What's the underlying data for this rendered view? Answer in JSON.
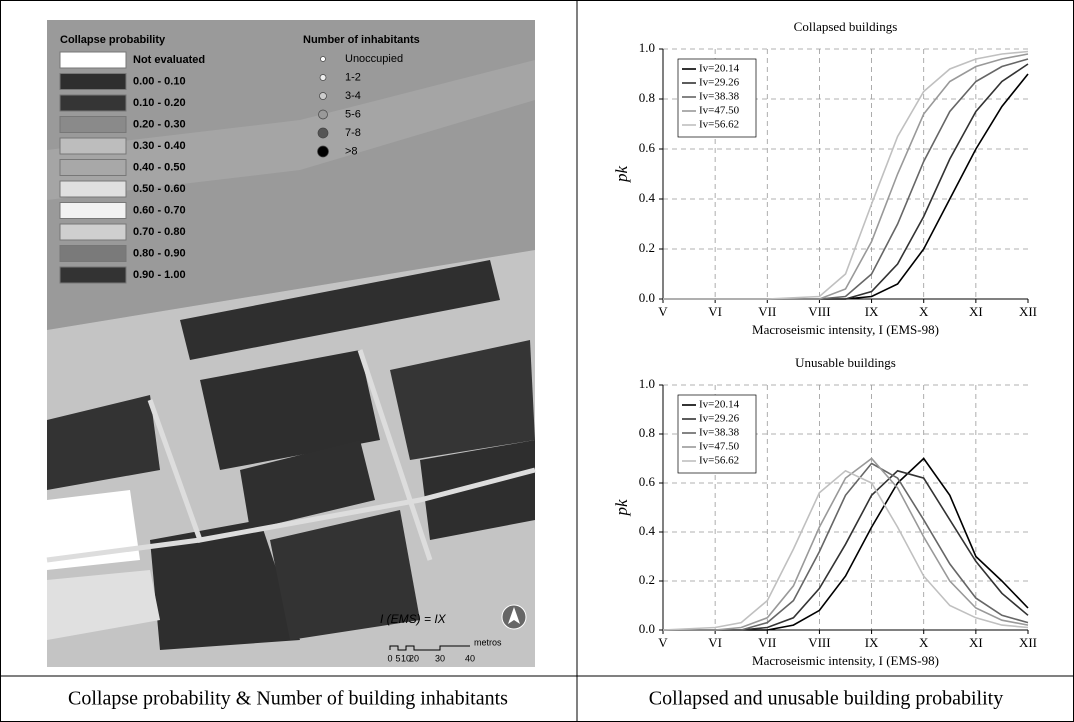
{
  "map": {
    "legend_title": "Collapse probability",
    "classes": [
      {
        "label": "Not evaluated",
        "color": "#ffffff"
      },
      {
        "label": "0.00 - 0.10",
        "color": "#2e2e2e"
      },
      {
        "label": "0.10 - 0.20",
        "color": "#353535"
      },
      {
        "label": "0.20 - 0.30",
        "color": "#8a8a8a"
      },
      {
        "label": "0.30 - 0.40",
        "color": "#bdbdbd"
      },
      {
        "label": "0.40 - 0.50",
        "color": "#a8a8a8"
      },
      {
        "label": "0.50 - 0.60",
        "color": "#e0e0e0"
      },
      {
        "label": "0.60 - 0.70",
        "color": "#f2f2f2"
      },
      {
        "label": "0.70 - 0.80",
        "color": "#cfcfcf"
      },
      {
        "label": "0.80 - 0.90",
        "color": "#7a7a7a"
      },
      {
        "label": "0.90 - 1.00",
        "color": "#333333"
      }
    ],
    "inhabitants_title": "Number of inhabitants",
    "inhabitant_classes": [
      {
        "label": "Unoccupied",
        "color": "#ffffff"
      },
      {
        "label": "1-2",
        "color": "#eeeeee"
      },
      {
        "label": "3-4",
        "color": "#cccccc"
      },
      {
        "label": "5-6",
        "color": "#999999"
      },
      {
        "label": "7-8",
        "color": "#555555"
      },
      {
        "label": ">8",
        "color": "#000000"
      }
    ],
    "intensity_label": "I (EMS) = IX",
    "scale_labels": [
      "0",
      "5",
      "10",
      "20",
      "30",
      "40"
    ],
    "scale_unit": "metros"
  },
  "captions": [
    "Collapse probability & Number of building inhabitants",
    "Collapsed and unusable building probability"
  ],
  "chart_data": [
    {
      "type": "line",
      "title": "Collapsed buildings",
      "x_label": "Macroseismic intensity, I (EMS-98)",
      "y_label": "pk",
      "xlim": [
        5,
        12
      ],
      "xticks": [
        {
          "value": 5,
          "label": "V"
        },
        {
          "value": 6,
          "label": "VI"
        },
        {
          "value": 7,
          "label": "VII"
        },
        {
          "value": 8,
          "label": "VIII"
        },
        {
          "value": 9,
          "label": "IX"
        },
        {
          "value": 10,
          "label": "X"
        },
        {
          "value": 11,
          "label": "XI"
        },
        {
          "value": 12,
          "label": "XII"
        }
      ],
      "ylim": [
        0,
        1
      ],
      "yticks": [
        {
          "value": 0,
          "label": "0.0"
        },
        {
          "value": 0.2,
          "label": "0.2"
        },
        {
          "value": 0.4,
          "label": "0.4"
        },
        {
          "value": 0.6,
          "label": "0.6"
        },
        {
          "value": 0.8,
          "label": "0.8"
        },
        {
          "value": 1,
          "label": "1.0"
        }
      ],
      "grid": true,
      "legend": "upper left",
      "series": [
        {
          "name": "Iv=20.14",
          "color": "#000000",
          "x": [
            5,
            6,
            7,
            8,
            8.5,
            9,
            9.5,
            10,
            10.5,
            11,
            11.5,
            12
          ],
          "values": [
            0,
            0,
            0,
            0,
            0,
            0.01,
            0.06,
            0.2,
            0.4,
            0.6,
            0.77,
            0.9
          ]
        },
        {
          "name": "Iv=29.26",
          "color": "#333333",
          "x": [
            5,
            6,
            7,
            8,
            8.5,
            9,
            9.5,
            10,
            10.5,
            11,
            11.5,
            12
          ],
          "values": [
            0,
            0,
            0,
            0,
            0,
            0.03,
            0.14,
            0.33,
            0.56,
            0.75,
            0.87,
            0.94
          ]
        },
        {
          "name": "Iv=38.38",
          "color": "#666666",
          "x": [
            5,
            6,
            7,
            8,
            8.5,
            9,
            9.5,
            10,
            10.5,
            11,
            11.5,
            12
          ],
          "values": [
            0,
            0,
            0,
            0,
            0.01,
            0.1,
            0.3,
            0.55,
            0.75,
            0.87,
            0.93,
            0.96
          ]
        },
        {
          "name": "Iv=47.50",
          "color": "#999999",
          "x": [
            5,
            6,
            7,
            8,
            8.5,
            9,
            9.5,
            10,
            10.5,
            11,
            11.5,
            12
          ],
          "values": [
            0,
            0,
            0,
            0,
            0.04,
            0.23,
            0.5,
            0.74,
            0.87,
            0.93,
            0.96,
            0.98
          ]
        },
        {
          "name": "Iv=56.62",
          "color": "#c0c0c0",
          "x": [
            5,
            6,
            7,
            8,
            8.5,
            9,
            9.5,
            10,
            10.5,
            11,
            11.5,
            12
          ],
          "values": [
            0,
            0,
            0,
            0.01,
            0.1,
            0.38,
            0.65,
            0.83,
            0.92,
            0.96,
            0.98,
            0.99
          ]
        }
      ]
    },
    {
      "type": "line",
      "title": "Unusable buildings",
      "x_label": "Macroseismic intensity, I (EMS-98)",
      "y_label": "pk",
      "xlim": [
        5,
        12
      ],
      "xticks": [
        {
          "value": 5,
          "label": "V"
        },
        {
          "value": 6,
          "label": "VI"
        },
        {
          "value": 7,
          "label": "VII"
        },
        {
          "value": 8,
          "label": "VIII"
        },
        {
          "value": 9,
          "label": "IX"
        },
        {
          "value": 10,
          "label": "X"
        },
        {
          "value": 11,
          "label": "XI"
        },
        {
          "value": 12,
          "label": "XII"
        }
      ],
      "ylim": [
        0,
        1
      ],
      "yticks": [
        {
          "value": 0,
          "label": "0.0"
        },
        {
          "value": 0.2,
          "label": "0.2"
        },
        {
          "value": 0.4,
          "label": "0.4"
        },
        {
          "value": 0.6,
          "label": "0.6"
        },
        {
          "value": 0.8,
          "label": "0.8"
        },
        {
          "value": 1,
          "label": "1.0"
        }
      ],
      "grid": true,
      "legend": "upper left",
      "series": [
        {
          "name": "Iv=20.14",
          "color": "#000000",
          "x": [
            5,
            6,
            6.5,
            7,
            7.5,
            8,
            8.5,
            9,
            9.5,
            10,
            10.5,
            11,
            11.5,
            12
          ],
          "values": [
            0,
            0,
            0,
            0,
            0.02,
            0.08,
            0.22,
            0.42,
            0.6,
            0.7,
            0.55,
            0.3,
            0.2,
            0.09
          ]
        },
        {
          "name": "Iv=29.26",
          "color": "#333333",
          "x": [
            5,
            6,
            6.5,
            7,
            7.5,
            8,
            8.5,
            9,
            9.5,
            10,
            10.5,
            11,
            11.5,
            12
          ],
          "values": [
            0,
            0,
            0,
            0.01,
            0.05,
            0.17,
            0.35,
            0.55,
            0.65,
            0.62,
            0.45,
            0.28,
            0.15,
            0.06
          ]
        },
        {
          "name": "Iv=38.38",
          "color": "#666666",
          "x": [
            5,
            6,
            6.5,
            7,
            7.5,
            8,
            8.5,
            9,
            9.5,
            10,
            10.5,
            11,
            11.5,
            12
          ],
          "values": [
            0,
            0,
            0,
            0.03,
            0.12,
            0.32,
            0.55,
            0.68,
            0.62,
            0.45,
            0.27,
            0.13,
            0.06,
            0.03
          ]
        },
        {
          "name": "Iv=47.50",
          "color": "#999999",
          "x": [
            5,
            6,
            6.5,
            7,
            7.5,
            8,
            8.5,
            9,
            9.5,
            10,
            10.5,
            11,
            11.5,
            12
          ],
          "values": [
            0,
            0,
            0.01,
            0.05,
            0.18,
            0.42,
            0.62,
            0.7,
            0.58,
            0.38,
            0.2,
            0.09,
            0.04,
            0.02
          ]
        },
        {
          "name": "Iv=56.62",
          "color": "#c0c0c0",
          "x": [
            5,
            6,
            6.5,
            7,
            7.5,
            8,
            8.5,
            9,
            9.5,
            10,
            10.5,
            11,
            11.5,
            12
          ],
          "values": [
            0,
            0.01,
            0.03,
            0.12,
            0.33,
            0.56,
            0.65,
            0.6,
            0.42,
            0.22,
            0.1,
            0.05,
            0.02,
            0.01
          ]
        }
      ]
    }
  ]
}
